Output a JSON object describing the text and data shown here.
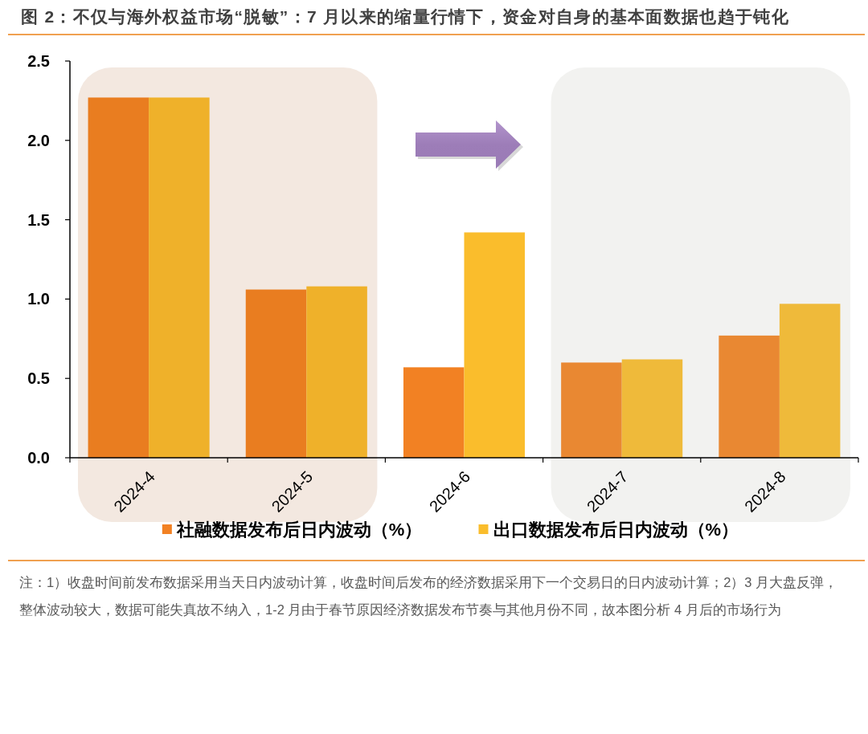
{
  "chart_data": {
    "type": "bar",
    "title": "图 2：不仅与海外权益市场“脱敏”：7 月以来的缩量行情下，资金对自身的基本面数据也趋于钝化",
    "categories": [
      "2024-4",
      "2024-5",
      "2024-6",
      "2024-7",
      "2024-8"
    ],
    "series": [
      {
        "name": "社融数据发布后日内波动（%）",
        "color": "#f28123",
        "colors": [
          "#e97d20",
          "#e97d20",
          "#f28123",
          "#e98832",
          "#e98832"
        ],
        "values": [
          2.27,
          1.06,
          0.57,
          0.6,
          0.77
        ]
      },
      {
        "name": "出口数据发布后日内波动（%）",
        "color": "#fabd2c",
        "colors": [
          "#efb12a",
          "#efb12a",
          "#fabd2c",
          "#efba3a",
          "#efba3a"
        ],
        "values": [
          2.27,
          1.08,
          1.42,
          0.62,
          0.97
        ]
      }
    ],
    "ylim": [
      0,
      2.5
    ],
    "yticks": [
      {
        "value": 0,
        "label": "0.0"
      },
      0.5,
      {
        "value": 1,
        "label": "1.0"
      },
      1.5,
      {
        "value": 2,
        "label": "2.0"
      },
      2.5
    ],
    "bands": [
      {
        "axis": "x",
        "from": "2024-4",
        "to": "2024-5",
        "color": "#f3e8e0"
      },
      {
        "axis": "x",
        "from": "2024-7",
        "to": "2024-8",
        "color": "#f2f2f0"
      }
    ],
    "legend": "bottom",
    "annotations": [
      "注：1）收盘时间前发布数据采用当天日内波动计算，收盘时间后发布的经济数据采用下一个交易日的日内波动计算；2）3 月大盘反弹，整体波动较大，数据可能失真故不纳入，1-2 月由于春节原因经济数据发布节奏与其他月份不同，故本图分析 4 月后的市场行为"
    ]
  }
}
